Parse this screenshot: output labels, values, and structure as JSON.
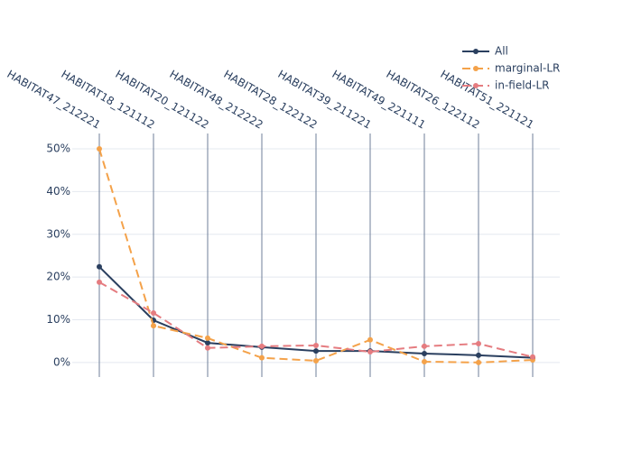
{
  "chart_data": {
    "type": "line",
    "categories": [
      "HABITAT47_212221",
      "HABITAT18_121112",
      "HABITAT20_121122",
      "HABITAT48_212222",
      "HABITAT28_122122",
      "HABITAT39_211221",
      "HABITAT49_221111",
      "HABITAT26_122112",
      "HABITAT51_221121"
    ],
    "series": [
      {
        "name": "All",
        "color": "#2a3f5f",
        "dash": "solid",
        "values": [
          22.4,
          9.9,
          4.6,
          3.6,
          2.7,
          2.7,
          2.1,
          1.7,
          1.1
        ]
      },
      {
        "name": "marginal-LR",
        "color": "#f4a24a",
        "dash": "dash",
        "values": [
          50.0,
          8.6,
          5.7,
          1.1,
          0.4,
          5.3,
          0.2,
          0.0,
          0.6
        ]
      },
      {
        "name": "in-field-LR",
        "color": "#e57c80",
        "dash": "dash",
        "values": [
          18.8,
          11.6,
          3.4,
          3.8,
          4.0,
          2.5,
          3.8,
          4.4,
          1.3
        ]
      }
    ],
    "ylim": [
      -3.4,
      53.6
    ],
    "yticks": [
      {
        "value": 0,
        "label": "0%"
      },
      {
        "value": 10,
        "label": "10%"
      },
      {
        "value": 20,
        "label": "20%"
      },
      {
        "value": 30,
        "label": "30%"
      },
      {
        "value": 40,
        "label": "40%"
      },
      {
        "value": 50,
        "label": "50%"
      }
    ],
    "grid": true,
    "legend": "top-right"
  }
}
